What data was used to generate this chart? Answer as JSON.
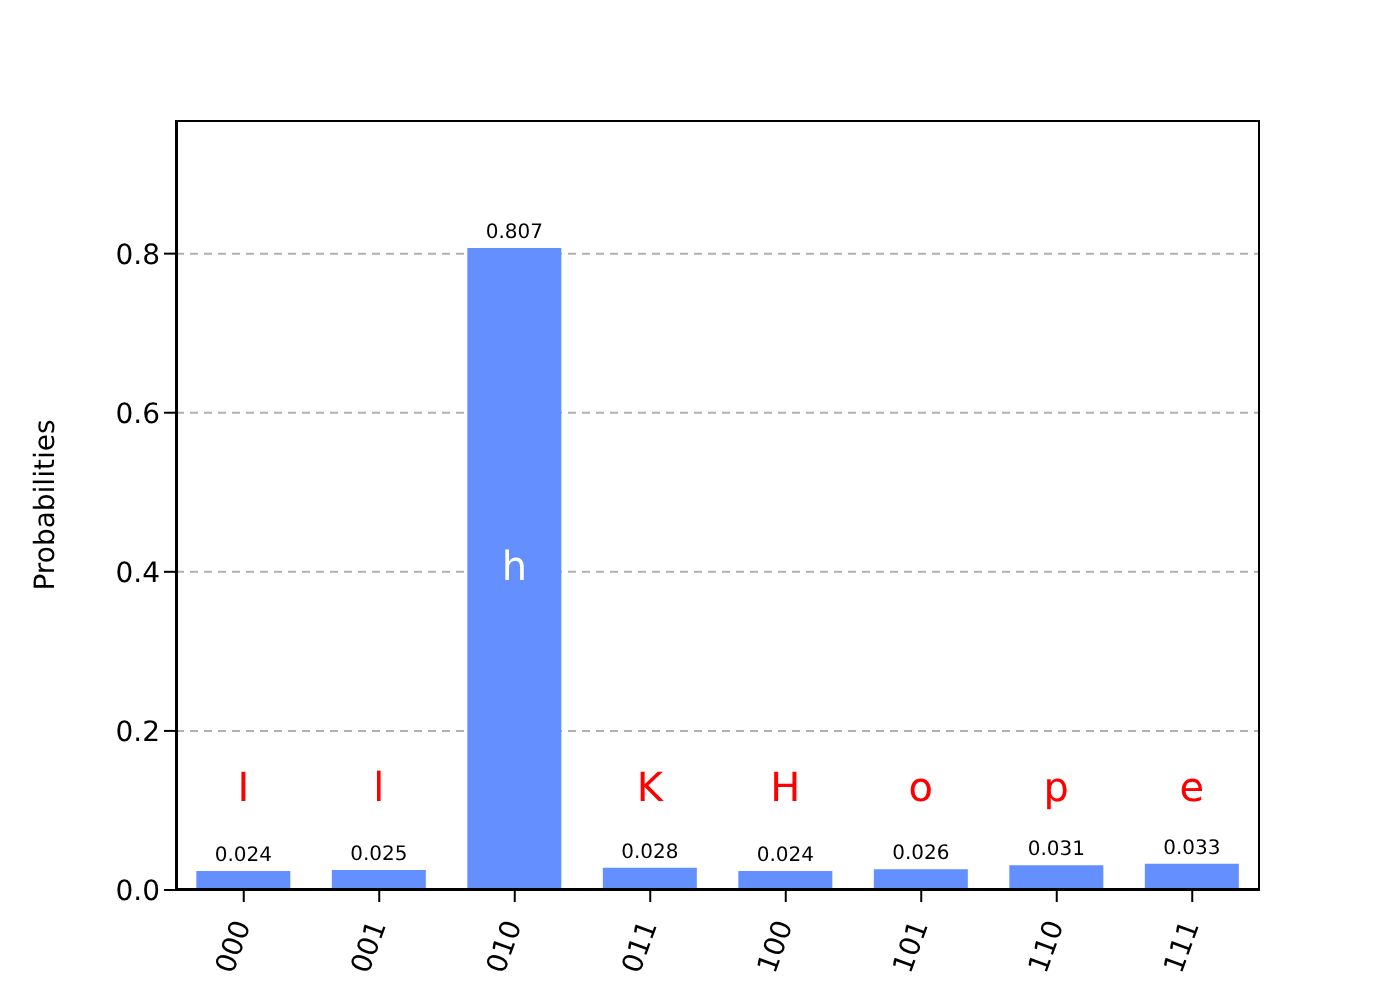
{
  "chart_data": {
    "type": "bar",
    "ylabel": "Probabilities",
    "categories": [
      "000",
      "001",
      "010",
      "011",
      "100",
      "101",
      "110",
      "111"
    ],
    "values": [
      0.024,
      0.025,
      0.807,
      0.028,
      0.024,
      0.026,
      0.031,
      0.033
    ],
    "color": "#648fff",
    "ylim": [
      0,
      0.968
    ],
    "yticks": [
      {
        "value": 0,
        "label": "0.0"
      },
      0.2,
      0.4,
      0.6,
      0.8
    ],
    "grid": "y",
    "data_labels": true,
    "annotations": [
      "I",
      "l",
      "h",
      "K",
      "H",
      "o",
      "p",
      "e"
    ]
  }
}
